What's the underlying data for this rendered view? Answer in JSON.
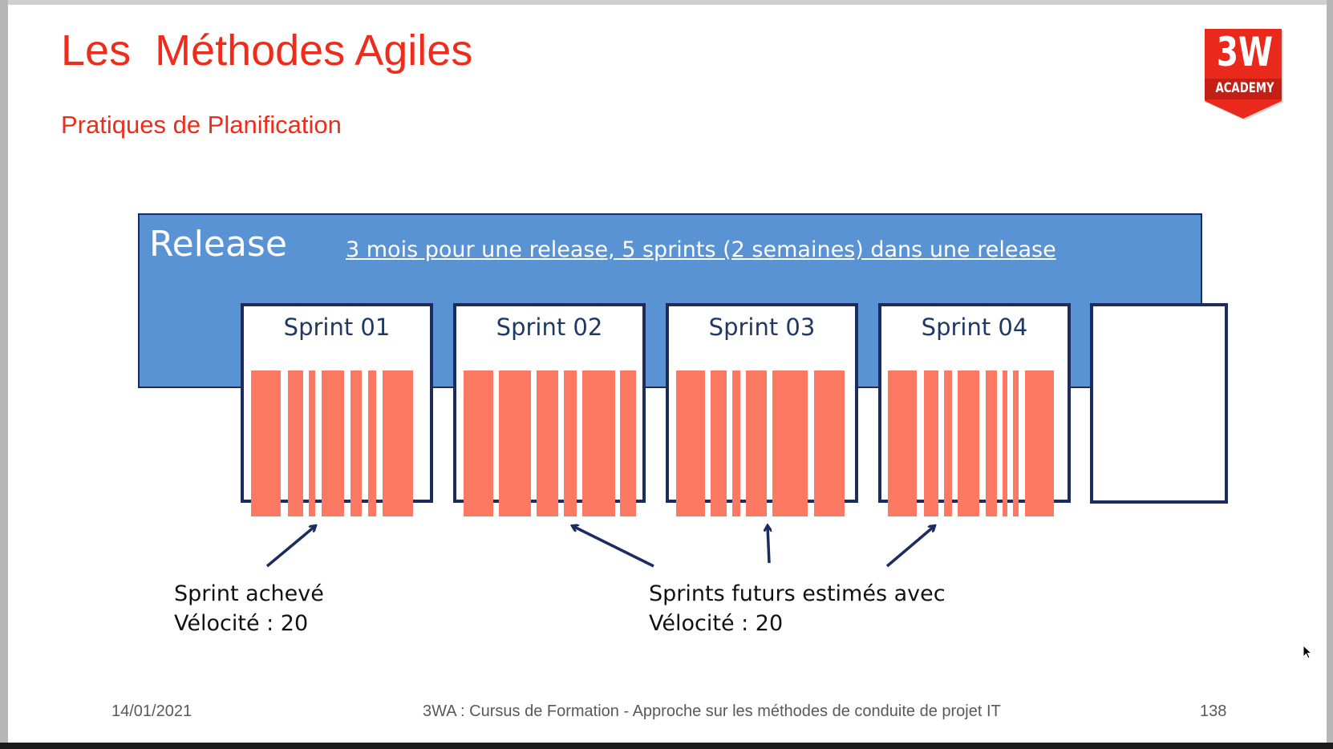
{
  "slide": {
    "title": "Les  Méthodes Agiles",
    "subtitle": "Pratiques de Planification"
  },
  "logo": {
    "main": "3W",
    "sub": "ACADEMY",
    "color": "#e8291c"
  },
  "release": {
    "label": "Release",
    "description": "3 mois pour une release, 5 sprints (2 semaines) dans une release",
    "color": "#5a93d3"
  },
  "sprints": [
    {
      "label": "Sprint 01"
    },
    {
      "label": "Sprint 02"
    },
    {
      "label": "Sprint 03"
    },
    {
      "label": "Sprint 04"
    },
    {
      "label": ""
    }
  ],
  "bar_color": "#fb7962",
  "notes": {
    "completed": {
      "line1": "Sprint achevé",
      "line2": "Vélocité : 20"
    },
    "future": {
      "line1": "Sprints futurs estimés avec",
      "line2": "Vélocité : 20"
    }
  },
  "footer": {
    "date": "14/01/2021",
    "center": "3WA : Cursus de Formation - Approche sur les méthodes de conduite de projet IT",
    "page": "138"
  }
}
